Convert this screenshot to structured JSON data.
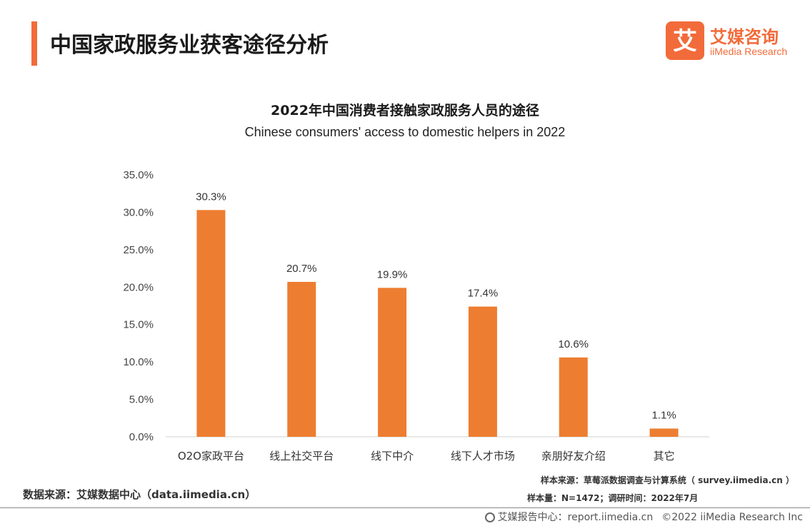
{
  "page": {
    "title": "中国家政服务业获客途径分析",
    "logo_cn": "艾媒咨询",
    "logo_en": "iiMedia Research",
    "logo_glyph": "艾"
  },
  "chart_data": {
    "type": "bar",
    "title": "2022年中国消费者接触家政服务人员的途径",
    "subtitle": "Chinese consumers' access to domestic helpers in 2022",
    "categories": [
      "O2O家政平台",
      "线上社交平台",
      "线下中介",
      "线下人才市场",
      "亲朋好友介绍",
      "其它"
    ],
    "values": [
      30.3,
      20.7,
      19.9,
      17.4,
      10.6,
      1.1
    ],
    "value_labels": [
      "30.3%",
      "20.7%",
      "19.9%",
      "17.4%",
      "10.6%",
      "1.1%"
    ],
    "yticks": [
      "0.0%",
      "5.0%",
      "10.0%",
      "15.0%",
      "20.0%",
      "25.0%",
      "30.0%",
      "35.0%"
    ],
    "ylim": [
      0,
      35
    ],
    "grid": false,
    "bar_color": "#ed7d31"
  },
  "source": {
    "data_source": "数据来源：艾媒数据中心（data.iimedia.cn）",
    "sample_source": "样本来源：草莓派数据调查与计算系统（ survey.iimedia.cn ）",
    "sample_size": "样本量：N=1472；调研时间：2022年7月"
  },
  "footer": {
    "report_center": "艾媒报告中心：report.iimedia.cn",
    "copyright": "©2022  iiMedia Research  Inc"
  },
  "colors": {
    "accent": "#f26b3a",
    "bar": "#ed7d31"
  }
}
